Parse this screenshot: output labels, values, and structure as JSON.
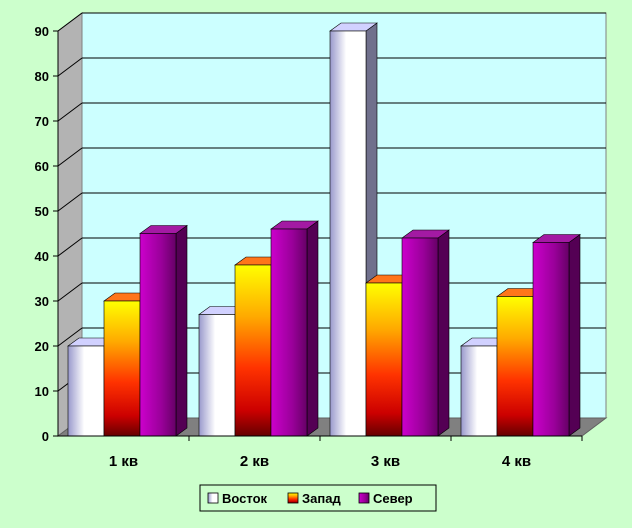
{
  "colors": {
    "page_bg": "#ccffcc",
    "plot_bg": "#ccffff",
    "grid": "#000000"
  },
  "chart_data": {
    "type": "bar",
    "style": "3d-clustered-column",
    "categories": [
      "1 кв",
      "2 кв",
      "3 кв",
      "4 кв"
    ],
    "series": [
      {
        "name": "Восток",
        "values": [
          20,
          27,
          90,
          20
        ],
        "color": "#ccccff"
      },
      {
        "name": "Запад",
        "values": [
          30,
          38,
          34,
          31
        ],
        "color": "#ff6600"
      },
      {
        "name": "Север",
        "values": [
          45,
          46,
          44,
          43
        ],
        "color": "#990099"
      }
    ],
    "ylim": [
      0,
      90
    ],
    "y_ticks": [
      0,
      10,
      20,
      30,
      40,
      50,
      60,
      70,
      80,
      90
    ],
    "grid": true,
    "legend": "bottom"
  }
}
